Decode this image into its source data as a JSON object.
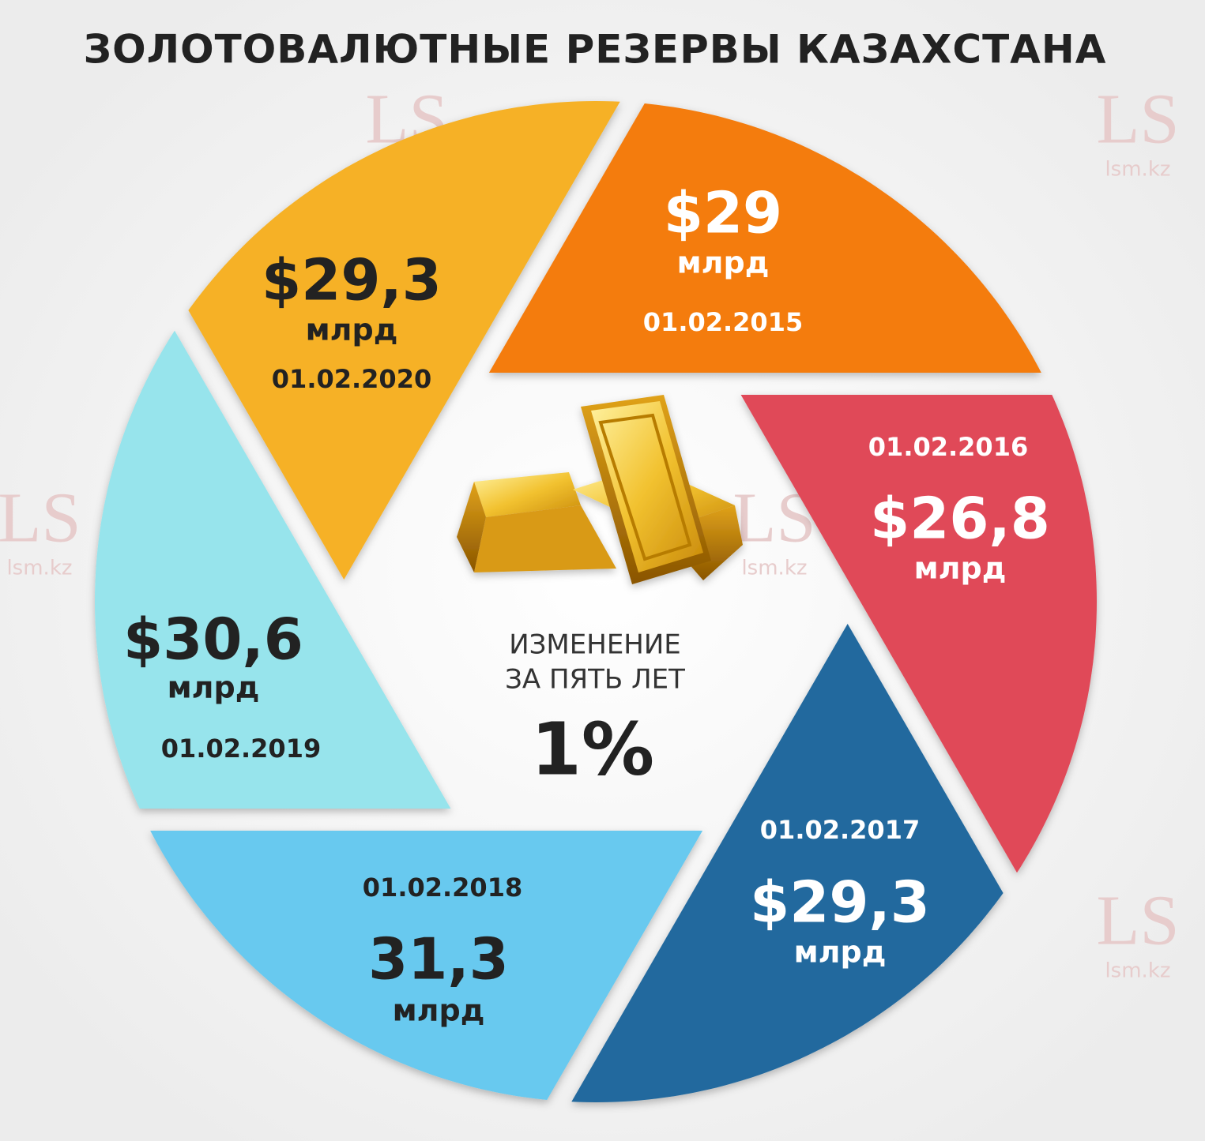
{
  "title": "ЗОЛОТОВАЛЮТНЫЕ РЕЗЕРВЫ КАЗАХСТАНА",
  "center": {
    "line1": "ИЗМЕНЕНИЕ",
    "line2": "ЗА ПЯТЬ ЛЕТ",
    "change": "1%"
  },
  "segments": [
    {
      "date": "01.02.2015",
      "amount": "$29",
      "unit": "млрд",
      "color": "#f47b0a",
      "text_color": "#ffffff"
    },
    {
      "date": "01.02.2016",
      "amount": "$26,8",
      "unit": "млрд",
      "color": "#e04958",
      "text_color": "#ffffff"
    },
    {
      "date": "01.02.2017",
      "amount": "$29,3",
      "unit": "млрд",
      "color": "#22699e",
      "text_color": "#ffffff"
    },
    {
      "date": "01.02.2018",
      "amount": "31,3",
      "unit": "млрд",
      "color": "#68c9ef",
      "text_color": "#222222"
    },
    {
      "date": "01.02.2019",
      "amount": "$30,6",
      "unit": "млрд",
      "color": "#97e4ec",
      "text_color": "#222222"
    },
    {
      "date": "01.02.2020",
      "amount": "$29,3",
      "unit": "млрд",
      "color": "#f6b125",
      "text_color": "#222222"
    }
  ],
  "watermark": {
    "logo": "LS",
    "site": "lsm.kz"
  }
}
